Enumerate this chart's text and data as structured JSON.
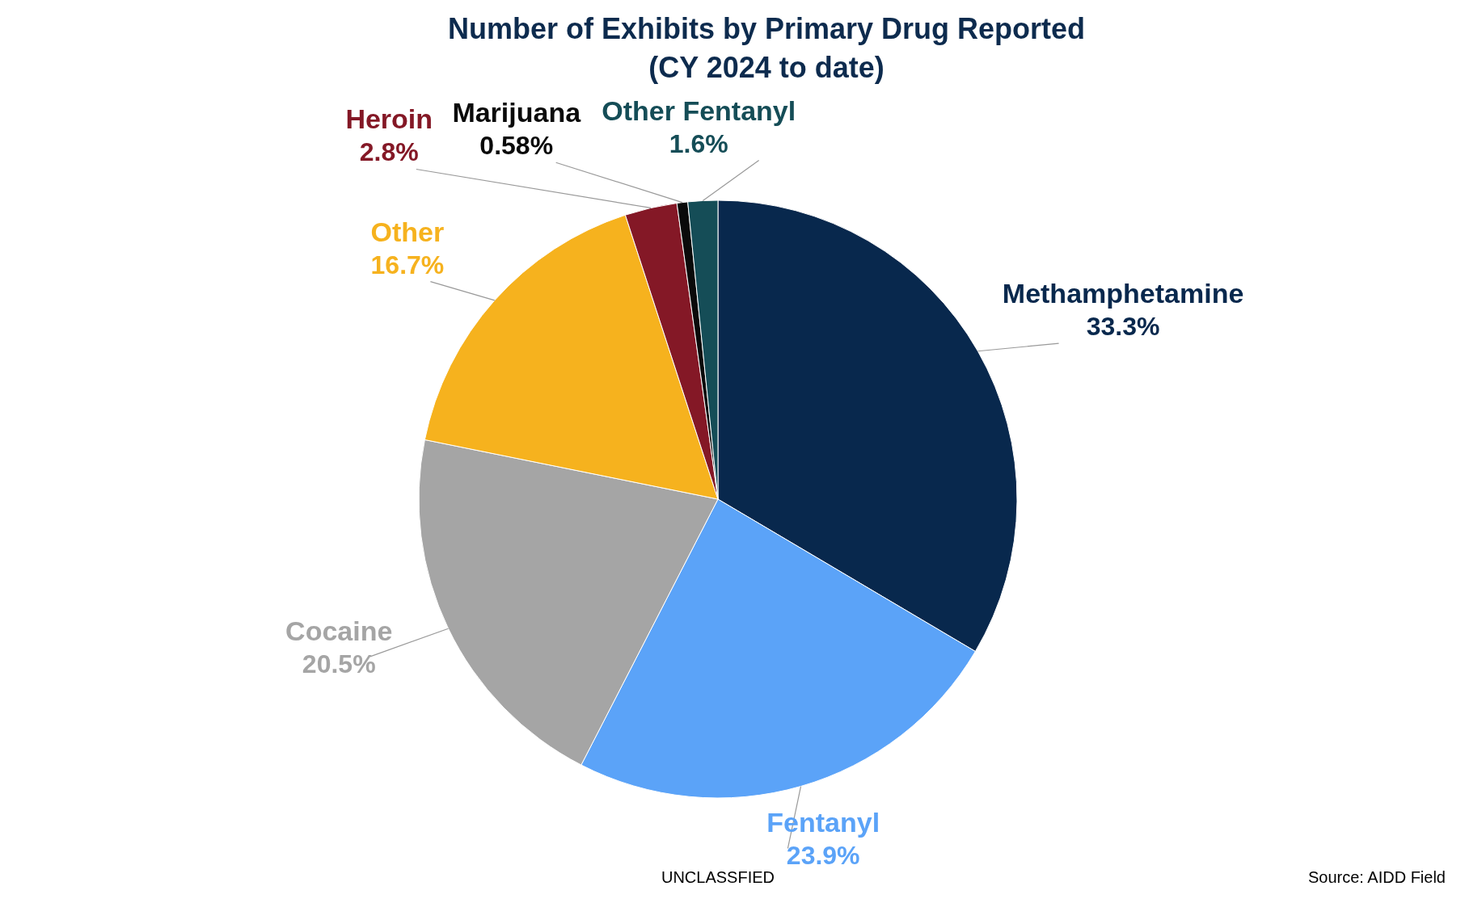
{
  "chart_data": {
    "type": "pie",
    "title": "Number of Exhibits by Primary Drug Reported",
    "subtitle": "(CY 2024 to date)",
    "categories": [
      "Methamphetamine",
      "Fentanyl",
      "Cocaine",
      "Other",
      "Heroin",
      "Marijuana",
      "Other Fentanyl"
    ],
    "values": [
      33.3,
      23.9,
      20.5,
      16.7,
      2.8,
      0.58,
      1.6
    ],
    "value_labels": [
      "33.3%",
      "23.9%",
      "20.5%",
      "16.7%",
      "2.8%",
      "0.58%",
      "1.6%"
    ],
    "colors": [
      "#08284d",
      "#5ba3f8",
      "#a5a5a5",
      "#f6b21e",
      "#841826",
      "#0a0a0a",
      "#154d57"
    ],
    "annotations": [
      "UNCLASSFIED",
      "Source: AIDD Field"
    ],
    "legend": false
  }
}
